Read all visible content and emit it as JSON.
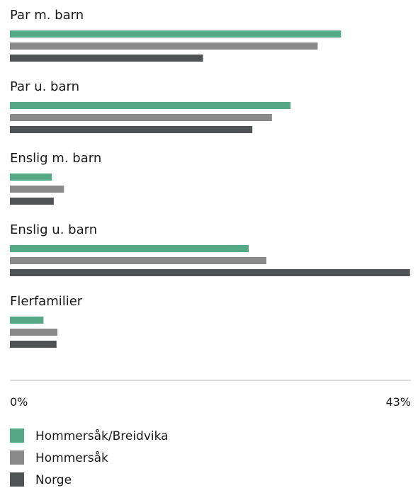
{
  "chart_data": {
    "type": "bar",
    "orientation": "horizontal",
    "categories": [
      "Par m. barn",
      "Par u. barn",
      "Enslig m. barn",
      "Enslig u. barn",
      "Flerfamilier"
    ],
    "series": [
      {
        "name": "Hommersåk/Breidvika",
        "color": "#55a987",
        "values": [
          35.5,
          30.1,
          4.5,
          25.6,
          3.6
        ]
      },
      {
        "name": "Hommersåk",
        "color": "#8a8a8a",
        "values": [
          33.0,
          28.1,
          5.8,
          27.5,
          5.1
        ]
      },
      {
        "name": "Norge",
        "color": "#4f5354",
        "values": [
          20.7,
          26.0,
          4.7,
          42.9,
          5.0
        ]
      }
    ],
    "xlim": [
      0,
      43
    ],
    "tick_labels": [
      "0%",
      "43%"
    ],
    "legend_position": "bottom",
    "grid": false
  }
}
